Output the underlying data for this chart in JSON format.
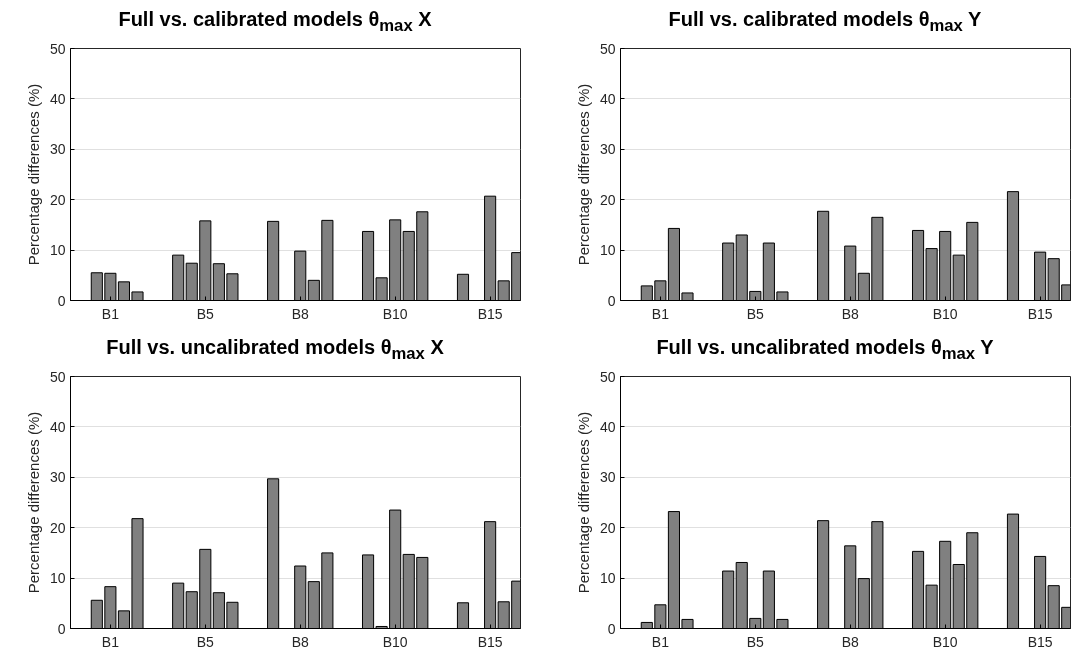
{
  "chart_data": [
    {
      "type": "bar",
      "title": "Full vs. calibrated models θ$_{max}$ X",
      "ylabel": "Percentage differences (%)",
      "categories": [
        "B1",
        "B5",
        "B8",
        "B10",
        "B15"
      ],
      "ylim": [
        0,
        50
      ],
      "yticks": [
        0,
        10,
        20,
        30,
        40,
        50
      ],
      "grid": "y",
      "series": [
        {
          "color": "#808080",
          "values": [
            0,
            9.0,
            15.7,
            13.7,
            5.2
          ]
        },
        {
          "color": "#808080",
          "values": [
            5.5,
            7.4,
            0,
            4.5,
            0
          ]
        },
        {
          "color": "#808080",
          "values": [
            5.4,
            15.8,
            9.8,
            16.0,
            20.7
          ]
        },
        {
          "color": "#808080",
          "values": [
            3.7,
            7.3,
            4.0,
            13.7,
            3.9
          ]
        },
        {
          "color": "#808080",
          "values": [
            1.7,
            5.3,
            15.9,
            17.6,
            9.5
          ]
        }
      ]
    },
    {
      "type": "bar",
      "title": "Full vs. calibrated models θ$_{max}$ Y",
      "ylabel": "Percentage differences (%)",
      "categories": [
        "B1",
        "B5",
        "B8",
        "B10",
        "B15"
      ],
      "ylim": [
        0,
        50
      ],
      "yticks": [
        0,
        10,
        20,
        30,
        40,
        50
      ],
      "grid": "y",
      "series": [
        {
          "color": "#808080",
          "values": [
            0,
            11.4,
            17.7,
            13.9,
            21.6
          ]
        },
        {
          "color": "#808080",
          "values": [
            2.9,
            13.0,
            0,
            10.3,
            0
          ]
        },
        {
          "color": "#808080",
          "values": [
            3.9,
            1.8,
            10.8,
            13.7,
            9.6
          ]
        },
        {
          "color": "#808080",
          "values": [
            14.3,
            11.4,
            5.4,
            9.0,
            8.3
          ]
        },
        {
          "color": "#808080",
          "values": [
            1.5,
            1.7,
            16.5,
            15.5,
            3.1
          ]
        }
      ]
    },
    {
      "type": "bar",
      "title": "Full vs. uncalibrated models θ$_{max}$ X",
      "ylabel": "Percentage differences (%)",
      "categories": [
        "B1",
        "B5",
        "B8",
        "B10",
        "B15"
      ],
      "ylim": [
        0,
        50
      ],
      "yticks": [
        0,
        10,
        20,
        30,
        40,
        50
      ],
      "grid": "y",
      "series": [
        {
          "color": "#808080",
          "values": [
            0,
            9.0,
            29.7,
            14.6,
            5.1
          ]
        },
        {
          "color": "#808080",
          "values": [
            5.6,
            7.3,
            0,
            0.4,
            0
          ]
        },
        {
          "color": "#808080",
          "values": [
            8.3,
            15.7,
            12.4,
            23.5,
            21.2
          ]
        },
        {
          "color": "#808080",
          "values": [
            3.5,
            7.1,
            9.3,
            14.7,
            5.3
          ]
        },
        {
          "color": "#808080",
          "values": [
            21.8,
            5.2,
            15.0,
            14.1,
            9.4
          ]
        }
      ]
    },
    {
      "type": "bar",
      "title": "Full vs. uncalibrated models θ$_{max}$ Y",
      "ylabel": "Percentage differences (%)",
      "categories": [
        "B1",
        "B5",
        "B8",
        "B10",
        "B15"
      ],
      "ylim": [
        0,
        50
      ],
      "yticks": [
        0,
        10,
        20,
        30,
        40,
        50
      ],
      "grid": "y",
      "series": [
        {
          "color": "#808080",
          "values": [
            0,
            11.4,
            21.4,
            15.3,
            22.7
          ]
        },
        {
          "color": "#808080",
          "values": [
            1.2,
            13.1,
            0,
            8.6,
            0
          ]
        },
        {
          "color": "#808080",
          "values": [
            4.7,
            2.0,
            16.4,
            17.3,
            14.3
          ]
        },
        {
          "color": "#808080",
          "values": [
            23.2,
            11.4,
            9.9,
            12.7,
            8.5
          ]
        },
        {
          "color": "#808080",
          "values": [
            1.8,
            1.8,
            21.2,
            19.0,
            4.2
          ]
        }
      ]
    }
  ]
}
